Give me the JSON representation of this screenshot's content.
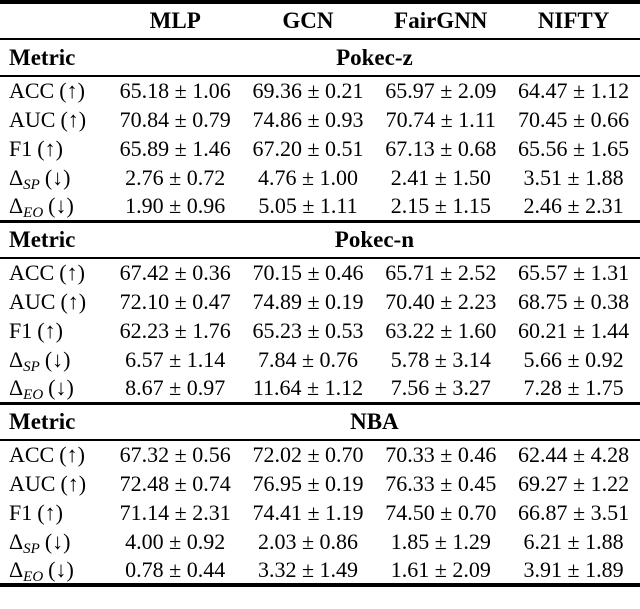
{
  "table": {
    "metric_label": "Metric",
    "models": [
      "MLP",
      "GCN",
      "FairGNN",
      "NIFTY"
    ],
    "sections": [
      {
        "dataset": "Pokec-z",
        "rows": [
          {
            "metric": "ACC",
            "sub": "",
            "dir": "(↑)",
            "values": [
              "65.18 ± 1.06",
              "69.36 ± 0.21",
              "65.97 ± 2.09",
              "64.47 ± 1.12"
            ]
          },
          {
            "metric": "AUC",
            "sub": "",
            "dir": "(↑)",
            "values": [
              "70.84 ± 0.79",
              "74.86 ± 0.93",
              "70.74 ± 1.11",
              "70.45 ± 0.66"
            ]
          },
          {
            "metric": "F1",
            "sub": "",
            "dir": "(↑)",
            "values": [
              "65.89 ± 1.46",
              "67.20 ± 0.51",
              "67.13 ± 0.68",
              "65.56 ± 1.65"
            ]
          },
          {
            "metric": "Δ",
            "sub": "SP",
            "dir": "(↓)",
            "values": [
              "2.76 ± 0.72",
              "4.76 ± 1.00",
              "2.41 ± 1.50",
              "3.51 ± 1.88"
            ]
          },
          {
            "metric": "Δ",
            "sub": "EO",
            "dir": "(↓)",
            "values": [
              "1.90 ± 0.96",
              "5.05 ± 1.11",
              "2.15 ± 1.15",
              "2.46 ± 2.31"
            ]
          }
        ]
      },
      {
        "dataset": "Pokec-n",
        "rows": [
          {
            "metric": "ACC",
            "sub": "",
            "dir": "(↑)",
            "values": [
              "67.42 ± 0.36",
              "70.15 ± 0.46",
              "65.71 ± 2.52",
              "65.57 ± 1.31"
            ]
          },
          {
            "metric": "AUC",
            "sub": "",
            "dir": "(↑)",
            "values": [
              "72.10 ± 0.47",
              "74.89 ± 0.19",
              "70.40 ± 2.23",
              "68.75 ± 0.38"
            ]
          },
          {
            "metric": "F1",
            "sub": "",
            "dir": "(↑)",
            "values": [
              "62.23 ± 1.76",
              "65.23 ± 0.53",
              "63.22 ± 1.60",
              "60.21 ± 1.44"
            ]
          },
          {
            "metric": "Δ",
            "sub": "SP",
            "dir": "(↓)",
            "values": [
              "6.57 ± 1.14",
              "7.84 ± 0.76",
              "5.78 ± 3.14",
              "5.66 ± 0.92"
            ]
          },
          {
            "metric": "Δ",
            "sub": "EO",
            "dir": "(↓)",
            "values": [
              "8.67 ± 0.97",
              "11.64 ± 1.12",
              "7.56 ± 3.27",
              "7.28 ± 1.75"
            ]
          }
        ]
      },
      {
        "dataset": "NBA",
        "rows": [
          {
            "metric": "ACC",
            "sub": "",
            "dir": "(↑)",
            "values": [
              "67.32 ± 0.56",
              "72.02 ± 0.70",
              "70.33 ± 0.46",
              "62.44 ± 4.28"
            ]
          },
          {
            "metric": "AUC",
            "sub": "",
            "dir": "(↑)",
            "values": [
              "72.48 ± 0.74",
              "76.95 ± 0.19",
              "76.33 ± 0.45",
              "69.27 ± 1.22"
            ]
          },
          {
            "metric": "F1",
            "sub": "",
            "dir": "(↑)",
            "values": [
              "71.14 ± 2.31",
              "74.41 ± 1.19",
              "74.50 ± 0.70",
              "66.87 ± 3.51"
            ]
          },
          {
            "metric": "Δ",
            "sub": "SP",
            "dir": "(↓)",
            "values": [
              "4.00 ± 0.92",
              "2.03 ± 0.86",
              "1.85 ± 1.29",
              "6.21 ± 1.88"
            ]
          },
          {
            "metric": "Δ",
            "sub": "EO",
            "dir": "(↓)",
            "values": [
              "0.78 ± 0.44",
              "3.32 ± 1.49",
              "1.61 ± 2.09",
              "3.91 ± 1.89"
            ]
          }
        ]
      }
    ]
  },
  "colors": {
    "text": "#000000",
    "background": "#ffffff",
    "rule": "#000000"
  }
}
